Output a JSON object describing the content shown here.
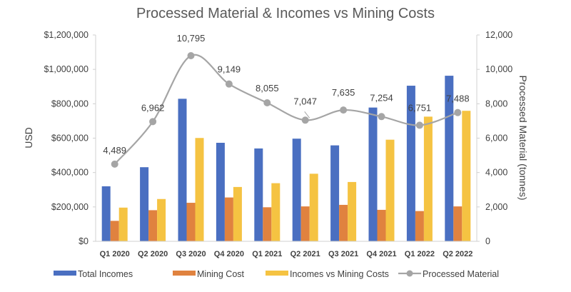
{
  "chart_data": {
    "type": "bar",
    "title": "Processed Material & Incomes vs Mining Costs",
    "categories": [
      "Q1 2020",
      "Q2 2020",
      "Q3 2020",
      "Q4 2020",
      "Q1 2021",
      "Q2 2021",
      "Q3 2021",
      "Q4 2021",
      "Q1 2022",
      "Q2 2022"
    ],
    "ylabel": "USD",
    "y2label": "Processed Material (tonnes)",
    "ylim": [
      0,
      1200000
    ],
    "y2lim": [
      0,
      12000
    ],
    "yticks": [
      "$0",
      "$200,000",
      "$400,000",
      "$600,000",
      "$800,000",
      "$1,000,000",
      "$1,200,000"
    ],
    "y2ticks": [
      "0",
      "2,000",
      "4,000",
      "6,000",
      "8,000",
      "10,000",
      "12,000"
    ],
    "grid": false,
    "legend_position": "bottom",
    "series": [
      {
        "name": "Total Incomes",
        "type": "bar",
        "axis": "left",
        "color": "#4A6FC1",
        "values": [
          320000,
          431000,
          829000,
          573000,
          540000,
          597000,
          558000,
          778000,
          905000,
          963000
        ]
      },
      {
        "name": "Mining Cost",
        "type": "bar",
        "axis": "left",
        "color": "#E0823F",
        "values": [
          119000,
          181000,
          224000,
          255000,
          198000,
          203000,
          212000,
          183000,
          176000,
          203000
        ]
      },
      {
        "name": "Incomes vs Mining Costs",
        "type": "bar",
        "axis": "left",
        "color": "#F5C342",
        "values": [
          196000,
          246000,
          601000,
          316000,
          338000,
          393000,
          345000,
          591000,
          725000,
          759000
        ]
      },
      {
        "name": "Processed Material",
        "type": "line",
        "axis": "right",
        "color": "#A5A5A5",
        "values": [
          4489,
          6962,
          10795,
          9149,
          8055,
          7047,
          7635,
          7254,
          6751,
          7488
        ],
        "labels": [
          "4,489",
          "6,962",
          "10,795",
          "9,149",
          "8,055",
          "7,047",
          "7,635",
          "7,254",
          "6,751",
          "7,488"
        ]
      }
    ]
  }
}
